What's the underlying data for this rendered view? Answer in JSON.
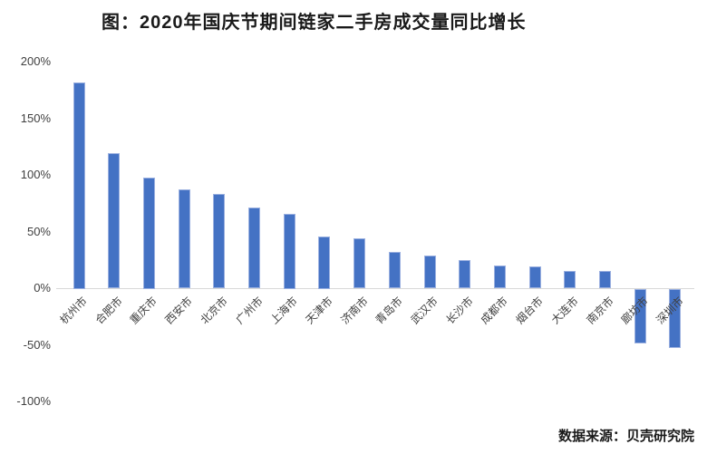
{
  "title": "图：2020年国庆节期间链家二手房成交量同比增长",
  "source": "数据来源：贝壳研究院",
  "colors": {
    "bar_fill": "#4472c4",
    "bar_edge": "#9bb0e0",
    "axis_line": "#d9d9d9",
    "tick_text": "#404040",
    "title_text": "#1a1a1a"
  },
  "chart_data": {
    "type": "bar",
    "title": "图：2020年国庆节期间链家二手房成交量同比增长",
    "categories": [
      "杭州市",
      "合肥市",
      "重庆市",
      "西安市",
      "北京市",
      "广州市",
      "上海市",
      "天津市",
      "济南市",
      "青岛市",
      "武汉市",
      "长沙市",
      "成都市",
      "烟台市",
      "大连市",
      "南京市",
      "廊坊市",
      "深圳市"
    ],
    "values": [
      182,
      119,
      98,
      87,
      83,
      71,
      66,
      46,
      44,
      32,
      29,
      25,
      20,
      19,
      15,
      15,
      -48,
      -52
    ],
    "unit": "%",
    "xlabel": "",
    "ylabel": "",
    "y_ticks": [
      "200%",
      "150%",
      "100%",
      "50%",
      "0%",
      "-50%",
      "-100%"
    ],
    "y_tick_values": [
      200,
      150,
      100,
      50,
      0,
      -50,
      -100
    ],
    "ylim": [
      -100,
      200
    ],
    "grid": false,
    "legend_position": "none",
    "source": "数据来源：贝壳研究院"
  }
}
